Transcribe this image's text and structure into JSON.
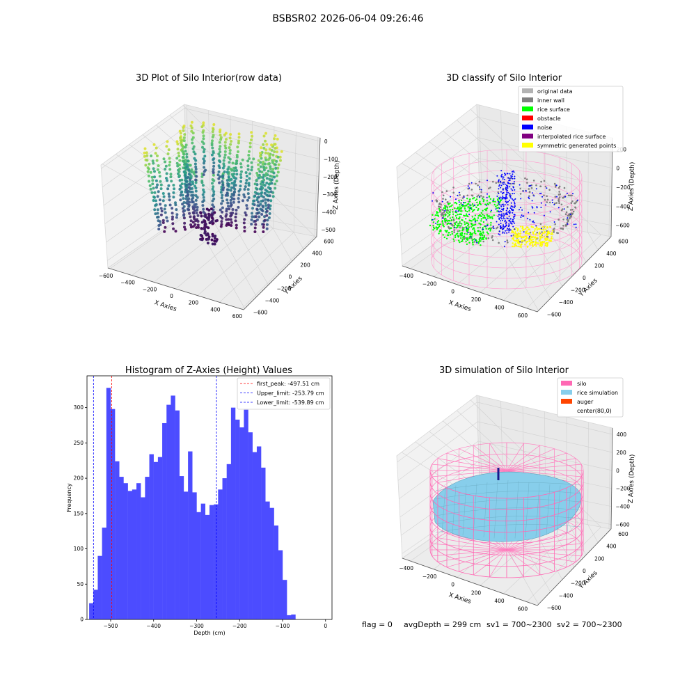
{
  "suptitle": "BSBSR02 2026-06-04 09:26:46",
  "status_line": {
    "flag": "flag = 0",
    "avg_depth": "avgDepth = 299 cm",
    "sv1": "sv1 = 700~2300",
    "sv2": "sv2 = 700~2300"
  },
  "chart_data": [
    {
      "type": "scatter",
      "title": "3D Plot of Silo Interior(row data)",
      "xlabel": "X Axies",
      "ylabel": "Y Axies",
      "zlabel": "Z Axies (Depth)",
      "xticks": [
        -600,
        -400,
        -200,
        0,
        200,
        400,
        600
      ],
      "yticks": [
        -600,
        -400,
        -200,
        0,
        200,
        400,
        600
      ],
      "zticks": [
        0,
        -100,
        -200,
        -300,
        -400,
        -500
      ],
      "xlim": [
        -600,
        600
      ],
      "ylim": [
        -600,
        600
      ],
      "zlim": [
        -560,
        0
      ],
      "colormap": "viridis",
      "grid": true
    },
    {
      "type": "scatter",
      "title": "3D classify of Silo Interior",
      "xlabel": "X Axies",
      "ylabel": "Y Axies",
      "zlabel": "Z Axies (Depth)",
      "xticks": [
        -400,
        -200,
        0,
        200,
        400,
        600
      ],
      "yticks": [
        -600,
        -400,
        -200,
        0,
        200,
        400,
        600
      ],
      "zticks": [
        200,
        0,
        -200,
        -400,
        -600
      ],
      "legend": [
        {
          "label": "original data",
          "color": "#b3b3b3"
        },
        {
          "label": "inner wall",
          "color": "#808080"
        },
        {
          "label": "rice surface",
          "color": "#00ff00"
        },
        {
          "label": "obstacle",
          "color": "#ff0000"
        },
        {
          "label": "noise",
          "color": "#0000ff"
        },
        {
          "label": "interpolated rice surface",
          "color": "#800080"
        },
        {
          "label": "symmetric generated points",
          "color": "#ffff00"
        }
      ],
      "legend_position": "top-right",
      "grid": true
    },
    {
      "type": "bar",
      "title": "Histogram of Z-Axies (Height) Values",
      "xlabel": "Depth (cm)",
      "ylabel": "Frequency",
      "xticks": [
        -500,
        -400,
        -300,
        -200,
        -100,
        0
      ],
      "yticks": [
        0,
        50,
        100,
        150,
        200,
        250,
        300
      ],
      "xlim": [
        -555,
        15
      ],
      "ylim": [
        0,
        345
      ],
      "bin_start": -550,
      "bin_width": 10,
      "bar_color": "#4c4cff",
      "values": [
        23,
        42,
        90,
        130,
        328,
        298,
        224,
        202,
        193,
        182,
        184,
        193,
        173,
        202,
        234,
        223,
        230,
        278,
        304,
        317,
        296,
        203,
        181,
        238,
        180,
        152,
        164,
        148,
        162,
        163,
        184,
        200,
        220,
        300,
        283,
        272,
        297,
        265,
        237,
        245,
        215,
        167,
        158,
        133,
        98,
        56,
        6,
        7
      ],
      "vlines": [
        {
          "label": "first_peak: -497.51 cm",
          "x": -497.51,
          "color": "#ff0000"
        },
        {
          "label": "Upper_limit: -253.79 cm",
          "x": -253.79,
          "color": "#0000ff"
        },
        {
          "label": "Lower_limit: -539.89 cm",
          "x": -539.89,
          "color": "#0000ff"
        }
      ],
      "legend_position": "top-right",
      "grid": false
    },
    {
      "type": "area",
      "title": "3D simulation of Silo Interior",
      "xlabel": "X Axies",
      "ylabel": "Y Axies",
      "zlabel": "Z Axies (Depth)",
      "xticks": [
        -400,
        -200,
        0,
        200,
        400,
        600
      ],
      "yticks": [
        -600,
        -400,
        -200,
        0,
        200,
        400,
        600
      ],
      "zticks": [
        400,
        200,
        0,
        -200,
        -400,
        -600
      ],
      "legend": [
        {
          "label": "silo",
          "color": "#ff69b4"
        },
        {
          "label": "rice simulation",
          "color": "#87ceeb"
        },
        {
          "label": "auger",
          "color": "#ff4500"
        },
        {
          "label": "center(80,0)",
          "color": "#ffffff"
        }
      ],
      "legend_position": "top-right",
      "grid": true
    }
  ]
}
